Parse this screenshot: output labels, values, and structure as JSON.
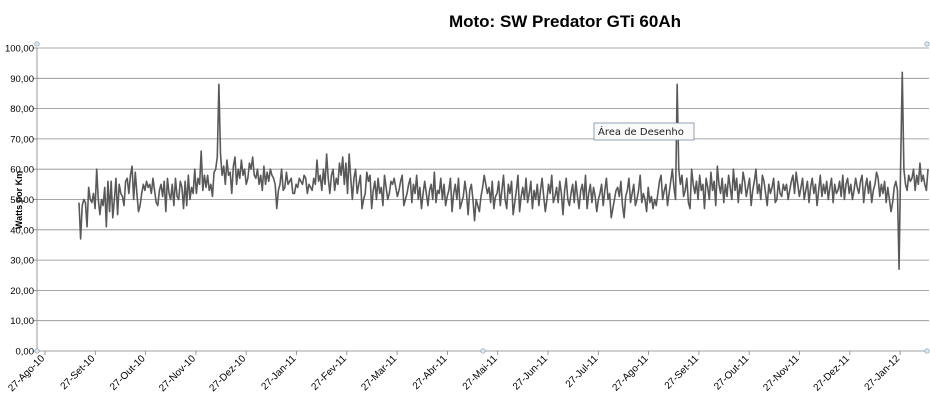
{
  "chart_data": {
    "type": "line",
    "title": "Moto: SW Predator GTi 60Ah",
    "ylabel": "Watts por Km",
    "xlabel": "",
    "ylim": [
      0,
      100
    ],
    "ytick_labels": [
      "0,00",
      "10,00",
      "20,00",
      "30,00",
      "40,00",
      "50,00",
      "60,00",
      "70,00",
      "80,00",
      "90,00",
      "100,00"
    ],
    "xtick_labels": [
      "27-Ago-10",
      "27-Set-10",
      "27-Out-10",
      "27-Nov-10",
      "27-Dez-10",
      "27-Jan-11",
      "27-Fev-11",
      "27-Mar-11",
      "27-Abr-11",
      "27-Mai-11",
      "27-Jun-11",
      "27-Jul-11",
      "27-Ago-11",
      "27-Set-11",
      "27-Out-11",
      "27-Nov-11",
      "27-Dez-11",
      "27-Jan-12"
    ],
    "grid": true,
    "series_color": "#595959",
    "series": [
      {
        "values": [
          49,
          37,
          48,
          50,
          49,
          41,
          54,
          50,
          49,
          52,
          47,
          60,
          50,
          45,
          50,
          48,
          54,
          41,
          56,
          46,
          56,
          44,
          50,
          57,
          45,
          55,
          52,
          51,
          48,
          56,
          57,
          52,
          58,
          61,
          50,
          59,
          52,
          46,
          48,
          52,
          55,
          53,
          56,
          54,
          55,
          52,
          57,
          53,
          49,
          48,
          53,
          55,
          51,
          56,
          46,
          57,
          52,
          50,
          55,
          48,
          57,
          51,
          50,
          56,
          54,
          47,
          56,
          48,
          58,
          50,
          54,
          52,
          60,
          52,
          57,
          55,
          66,
          53,
          58,
          54,
          58,
          53,
          55,
          51,
          59,
          60,
          64,
          88,
          65,
          58,
          61,
          55,
          63,
          58,
          59,
          52,
          61,
          64,
          55,
          60,
          57,
          63,
          58,
          60,
          55,
          57,
          62,
          60,
          64,
          58,
          57,
          60,
          55,
          58,
          53,
          61,
          55,
          59,
          56,
          60,
          58,
          57,
          55,
          47,
          53,
          55,
          60,
          53,
          54,
          59,
          55,
          56,
          57,
          52,
          52,
          55,
          54,
          57,
          56,
          55,
          58,
          57,
          52,
          55,
          54,
          53,
          57,
          55,
          63,
          56,
          58,
          53,
          60,
          55,
          65,
          57,
          52,
          58,
          60,
          53,
          57,
          55,
          62,
          58,
          64,
          55,
          62,
          52,
          65,
          57,
          50,
          57,
          60,
          52,
          55,
          58,
          47,
          50,
          52,
          59,
          56,
          58,
          47,
          53,
          56,
          50,
          57,
          52,
          54,
          48,
          58,
          54,
          50,
          52,
          56,
          55,
          57,
          54,
          51,
          53,
          56,
          58,
          48,
          50,
          52,
          55,
          57,
          49,
          55,
          52,
          58,
          50,
          54,
          47,
          52,
          56,
          52,
          48,
          53,
          55,
          50,
          59,
          49,
          53,
          52,
          57,
          50,
          55,
          48,
          51,
          53,
          57,
          46,
          52,
          55,
          50,
          57,
          47,
          49,
          51,
          56,
          52,
          45,
          53,
          55,
          50,
          43,
          50,
          48,
          46,
          51,
          54,
          58,
          55,
          52,
          54,
          49,
          56,
          47,
          51,
          52,
          56,
          48,
          53,
          58,
          50,
          47,
          55,
          52,
          56,
          45,
          49,
          53,
          58,
          46,
          51,
          54,
          50,
          57,
          49,
          52,
          56,
          47,
          53,
          50,
          55,
          48,
          53,
          57,
          51,
          46,
          50,
          55,
          52,
          58,
          49,
          51,
          54,
          49,
          56,
          52,
          45,
          53,
          57,
          50,
          48,
          52,
          55,
          49,
          56,
          51,
          47,
          53,
          55,
          50,
          58,
          47,
          52,
          55,
          49,
          54,
          51,
          46,
          50,
          52,
          55,
          48,
          53,
          57,
          50,
          52,
          44,
          47,
          50,
          53,
          54,
          51,
          56,
          48,
          44,
          51,
          53,
          57,
          49,
          52,
          55,
          48,
          50,
          53,
          58,
          49,
          52,
          50,
          46,
          54,
          49,
          51,
          47,
          50,
          48,
          52,
          56,
          58,
          50,
          53,
          55,
          48,
          52,
          56,
          60,
          54,
          50,
          88,
          60,
          55,
          58,
          51,
          53,
          57,
          49,
          47,
          60,
          55,
          52,
          56,
          50,
          58,
          53,
          55,
          47,
          57,
          54,
          50,
          59,
          53,
          56,
          48,
          61,
          55,
          52,
          57,
          49,
          55,
          51,
          58,
          54,
          50,
          60,
          53,
          57,
          49,
          55,
          52,
          59,
          56,
          51,
          54,
          57,
          48,
          53,
          56,
          60,
          52,
          55,
          50,
          58,
          56,
          52,
          48,
          55,
          52,
          54,
          57,
          49,
          50,
          56,
          52,
          51,
          55,
          53,
          55,
          50,
          53,
          56,
          58,
          52,
          59,
          55,
          51,
          54,
          57,
          50,
          53,
          56,
          49,
          54,
          57,
          52,
          55,
          48,
          53,
          58,
          51,
          55,
          52,
          56,
          50,
          54,
          57,
          49,
          55,
          52,
          53,
          56,
          51,
          58,
          50,
          55,
          57,
          52,
          55,
          50,
          53,
          57,
          54,
          52,
          56,
          58,
          49,
          54,
          57,
          52,
          56,
          49,
          53,
          55,
          59,
          57,
          51,
          55,
          52,
          56,
          49,
          54,
          50,
          46,
          49,
          54,
          56,
          53,
          27,
          62,
          92,
          60,
          55,
          53,
          58,
          56,
          57,
          60,
          53,
          58,
          55,
          62,
          56,
          58,
          55,
          53,
          60
        ]
      }
    ],
    "tooltip": "Área de Desenho"
  }
}
